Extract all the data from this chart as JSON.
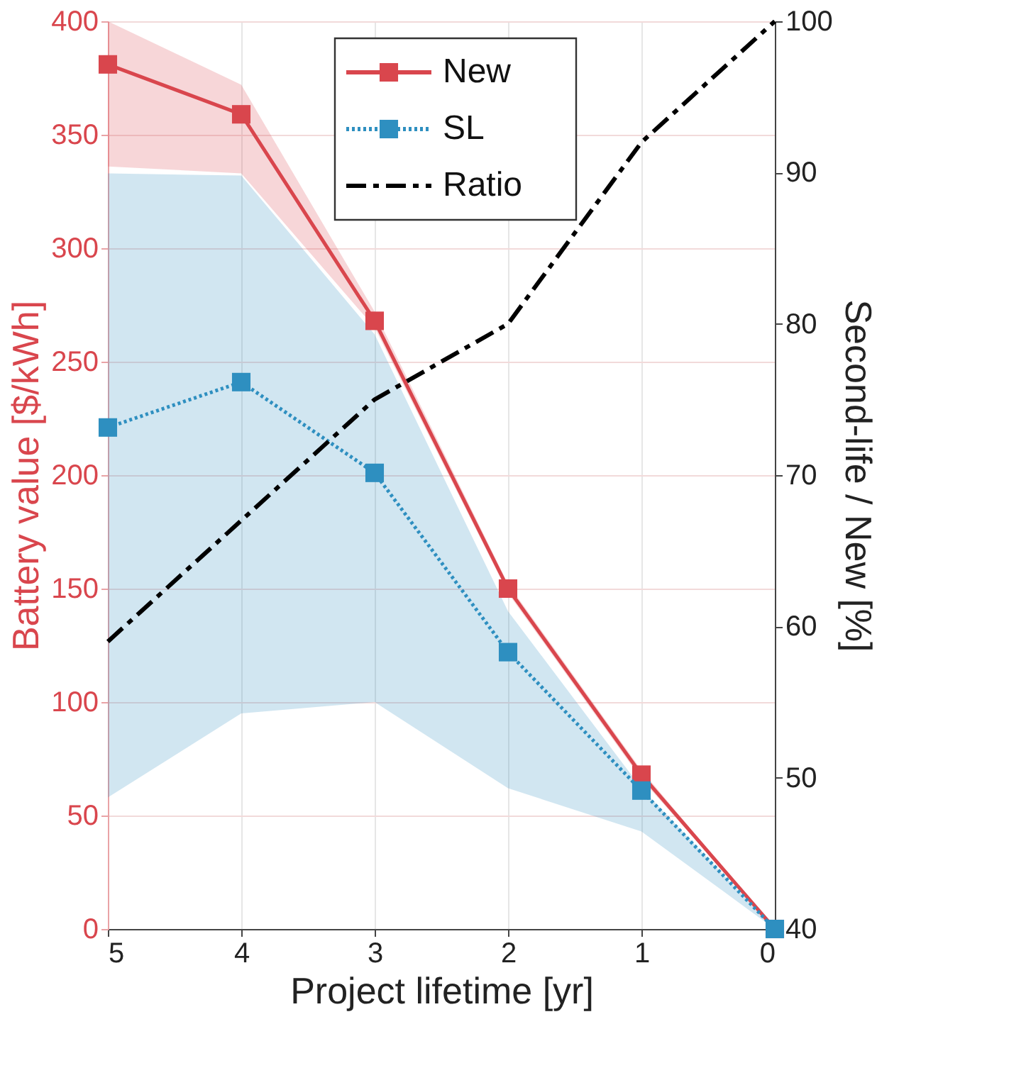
{
  "chart_data": {
    "type": "line",
    "xlabel": "Project lifetime [yr]",
    "ylabel": "Battery value [$/kWh]",
    "y2label": "Second-life / New [%]",
    "x": [
      5,
      4,
      3,
      2,
      1,
      0
    ],
    "xlim": [
      5,
      0
    ],
    "xticks": [
      5,
      4,
      3,
      2,
      1,
      0
    ],
    "ylim": [
      0,
      400
    ],
    "yticks": [
      0,
      50,
      100,
      150,
      200,
      250,
      300,
      350,
      400
    ],
    "y2lim": [
      40,
      100
    ],
    "y2ticks": [
      40,
      50,
      60,
      70,
      80,
      90,
      100
    ],
    "grid": true,
    "legend": "top",
    "series": [
      {
        "name": "New",
        "color": "#d9464d",
        "marker": "square",
        "line_style": "solid",
        "values": [
          381,
          359,
          268,
          150,
          68,
          0
        ],
        "lower": [
          336,
          333,
          265,
          148,
          66,
          0
        ],
        "upper": [
          400,
          372,
          272,
          152,
          70,
          0
        ]
      },
      {
        "name": "SL",
        "color": "#2e8fc0",
        "marker": "square",
        "line_style": "dotted",
        "values": [
          221,
          241,
          201,
          122,
          61,
          0
        ],
        "lower": [
          58,
          95,
          100,
          62,
          43,
          0
        ],
        "upper": [
          333,
          332,
          262,
          140,
          62,
          0
        ]
      },
      {
        "name": "Ratio",
        "color": "#000000",
        "marker": "none",
        "line_style": "dashed",
        "axis": "y2",
        "values": [
          59,
          67,
          75,
          80,
          92,
          100
        ]
      }
    ]
  }
}
